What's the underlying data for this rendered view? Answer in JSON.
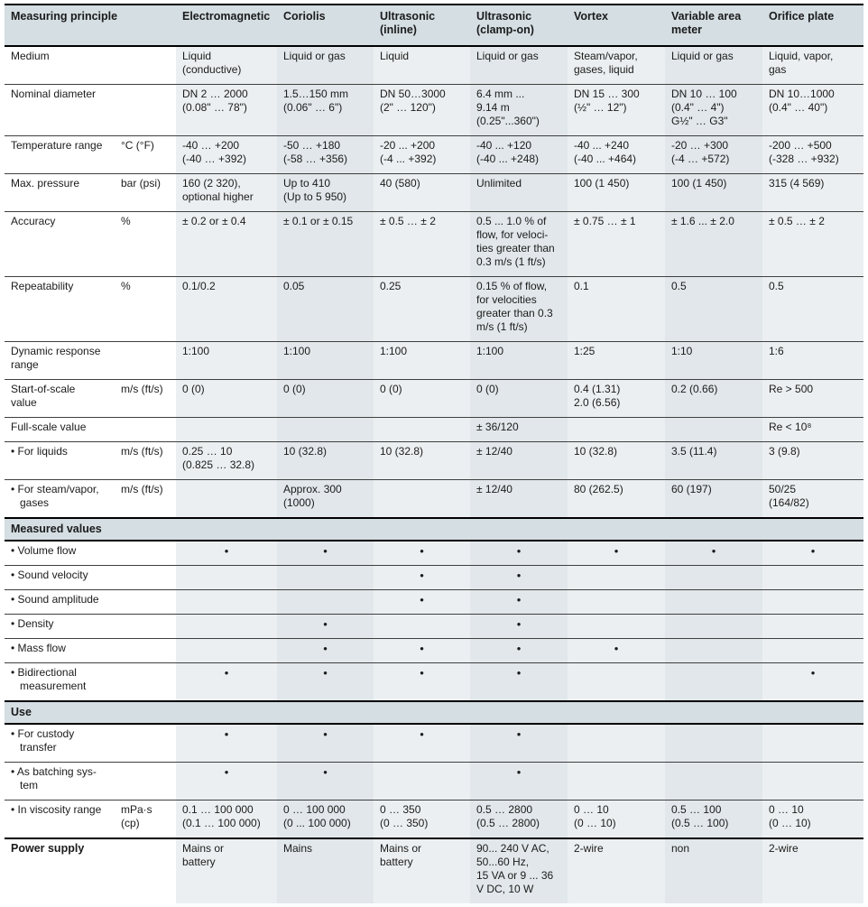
{
  "table": {
    "header_label": "Measuring principle",
    "dot_glyph": "•",
    "colors": {
      "band": "#d4dee3",
      "stripe_light": "#eceff1",
      "stripe_dark": "#e1e7ea",
      "border_heavy": "#000000",
      "border_hairline": "#3f3f3f"
    },
    "columns": [
      "Electromagnetic",
      "Coriolis",
      "Ultrasonic\n(inline)",
      "Ultrasonic\n(clamp-on)",
      "Vortex",
      "Variable area\nmeter",
      "Orifice plate"
    ],
    "rows": [
      {
        "t": "data",
        "label": "Medium",
        "unit": "",
        "cells": [
          "Liquid\n(conductive)",
          "Liquid or gas",
          "Liquid",
          "Liquid or gas",
          "Steam/vapor,\ngases, liquid",
          "Liquid or gas",
          "Liquid, vapor,\ngas"
        ]
      },
      {
        "t": "data",
        "label": "Nominal diameter",
        "unit": "",
        "cells": [
          "DN 2 … 2000\n(0.08\" … 78\")",
          "1.5…150 mm\n(0.06\"  … 6\")",
          "DN 50…3000\n(2\" … 120\")",
          "6.4 mm ...\n9.14 m\n(0.25\"...360\")",
          "DN 15 … 300\n(½\" … 12\")",
          "DN 10 … 100\n(0.4\" … 4\")\nG½\" … G3\"",
          "DN 10…1000\n(0.4\"  … 40\")"
        ]
      },
      {
        "t": "data",
        "label": "Temperature range",
        "unit": "°C (°F)",
        "cells": [
          "-40 … +200\n(-40 … +392)",
          "-50 … +180\n(-58 … +356)",
          "-20 ... +200\n(-4 ... +392)",
          "-40 ... +120\n(-40 ... +248)",
          "-40 ... +240\n(-40 ... +464)",
          "-20 … +300\n(-4 … +572)",
          "-200 … +500\n(-328 … +932)"
        ]
      },
      {
        "t": "data",
        "label": "Max. pressure",
        "unit": "bar (psi)",
        "cells": [
          "160 (2 320),\noptional higher",
          "Up to 410\n(Up to 5 950)",
          "40 (580)",
          "Unlimited",
          "100 (1 450)",
          "100 (1 450)",
          "315 (4 569)"
        ]
      },
      {
        "t": "data",
        "label": "Accuracy",
        "unit": "%",
        "cells": [
          "± 0.2 or ± 0.4",
          "± 0.1 or ± 0.15",
          "± 0.5 … ± 2",
          "0.5 ... 1.0 % of\nflow, for veloci-\nties greater than\n0.3 m/s (1 ft/s)",
          "± 0.75 … ± 1",
          "± 1.6 ... ± 2.0",
          "± 0.5 … ± 2"
        ]
      },
      {
        "t": "data",
        "label": "Repeatability",
        "unit": "%",
        "cells": [
          "0.1/0.2",
          "0.05",
          "0.25",
          "0.15 % of flow,\nfor velocities\ngreater than 0.3\nm/s (1 ft/s)",
          "0.1",
          "0.5",
          "0.5"
        ]
      },
      {
        "t": "data",
        "label": "Dynamic response\nrange",
        "unit": "",
        "cells": [
          "1:100",
          "1:100",
          "1:100",
          "1:100",
          "1:25",
          "1:10",
          "1:6"
        ]
      },
      {
        "t": "data",
        "label": "Start-of-scale\nvalue",
        "unit": "m/s (ft/s)",
        "cells": [
          "0 (0)",
          "0 (0)",
          "0 (0)",
          "0 (0)",
          "0.4 (1.31)\n2.0 (6.56)",
          "0.2 (0.66)",
          "Re > 500"
        ]
      },
      {
        "t": "data",
        "label": "Full-scale value",
        "unit": "",
        "cells": [
          "",
          "",
          "",
          "± 36/120",
          "",
          "",
          "Re < 10⁸"
        ]
      },
      {
        "t": "data",
        "label": "• For liquids",
        "unit": "m/s (ft/s)",
        "cells": [
          "0.25 … 10\n(0.825 … 32.8)",
          "10 (32.8)",
          "10 (32.8)",
          "± 12/40",
          "10 (32.8)",
          "3.5 (11.4)",
          "3 (9.8)"
        ]
      },
      {
        "t": "data",
        "label": "• For steam/vapor,\ngases",
        "unit": "m/s (ft/s)",
        "cells": [
          "",
          "Approx. 300\n(1000)",
          "",
          "± 12/40",
          "80 (262.5)",
          "60 (197)",
          "50/25\n(164/82)"
        ]
      },
      {
        "t": "section",
        "label": "Measured values"
      },
      {
        "t": "dots",
        "label": "• Volume flow",
        "unit": "",
        "cells": [
          1,
          1,
          1,
          1,
          1,
          1,
          1
        ]
      },
      {
        "t": "dots",
        "label": "• Sound velocity",
        "unit": "",
        "cells": [
          0,
          0,
          1,
          1,
          0,
          0,
          0
        ]
      },
      {
        "t": "dots",
        "label": "• Sound amplitude",
        "unit": "",
        "cells": [
          0,
          0,
          1,
          1,
          0,
          0,
          0
        ]
      },
      {
        "t": "dots",
        "label": "• Density",
        "unit": "",
        "cells": [
          0,
          1,
          0,
          1,
          0,
          0,
          0
        ]
      },
      {
        "t": "dots",
        "label": "• Mass flow",
        "unit": "",
        "cells": [
          0,
          1,
          1,
          1,
          1,
          0,
          0
        ]
      },
      {
        "t": "dots",
        "label": "• Bidirectional\nmeasurement",
        "unit": "",
        "cells": [
          1,
          1,
          1,
          1,
          0,
          0,
          1
        ]
      },
      {
        "t": "section",
        "label": "Use"
      },
      {
        "t": "dots",
        "label": "• For custody\ntransfer",
        "unit": "",
        "cells": [
          1,
          1,
          1,
          1,
          0,
          0,
          0
        ]
      },
      {
        "t": "dots",
        "label": "• As batching sys-\ntem",
        "unit": "",
        "cells": [
          1,
          1,
          0,
          1,
          0,
          0,
          0
        ]
      },
      {
        "t": "data",
        "label": "• In viscosity range",
        "unit": "mPa·s\n(cp)",
        "cells": [
          "0.1 … 100 000\n(0.1 … 100 000)",
          "0 … 100 000\n(0 ... 100 000)",
          "0 … 350\n(0 … 350)",
          "0.5 … 2800\n(0.5 … 2800)",
          "0 … 10\n(0 … 10)",
          "0.5 … 100\n(0.5 … 100)",
          "0 … 10\n(0 … 10)"
        ]
      },
      {
        "t": "data",
        "label": "Power supply",
        "bold": true,
        "heavy": true,
        "unit": "",
        "cells": [
          "Mains or\nbattery",
          "Mains",
          "Mains or\nbattery",
          "90... 240 V AC,\n50...60 Hz,\n15 VA or 9 ... 36\nV DC, 10 W",
          "2-wire",
          "non",
          "2-wire"
        ]
      }
    ]
  }
}
